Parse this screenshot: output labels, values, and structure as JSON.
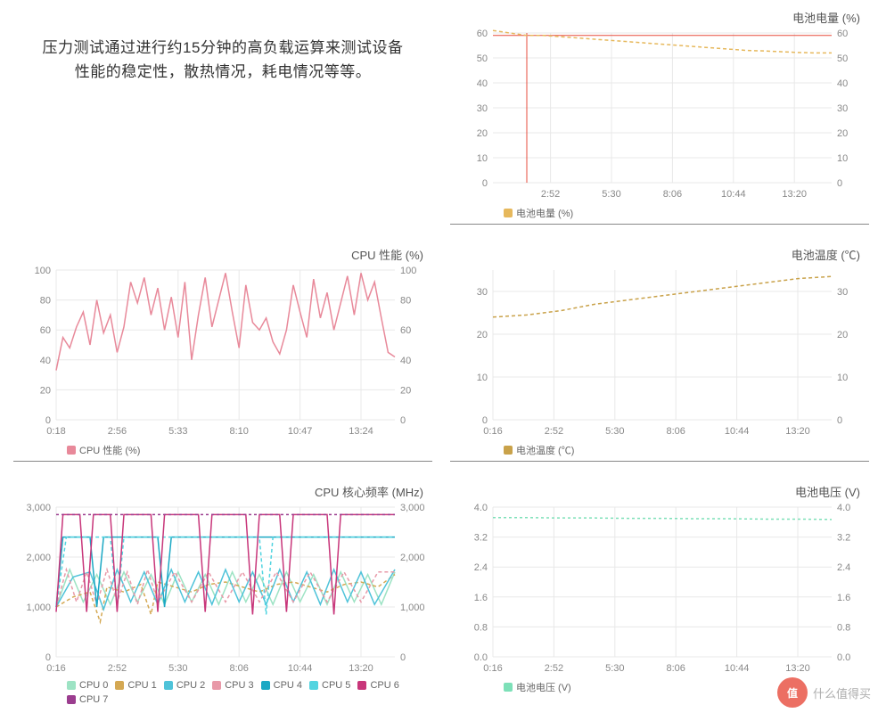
{
  "description": "压力测试通过进行约15分钟的高负载运算来测试设备性能的稳定性，散热情况，耗电情况等等。",
  "watermark": {
    "badge": "值",
    "text": "什么值得买"
  },
  "colors": {
    "grid": "#e8e8e8",
    "axis_text": "#888888",
    "redline": "#e74c3c"
  },
  "charts": {
    "battery_level": {
      "title": "电池电量 (%)",
      "legend_label": "电池电量 (%)",
      "series_color": "#e6b85c",
      "dash": "4,3",
      "ylim": [
        0,
        60
      ],
      "yticks": [
        0,
        10,
        20,
        30,
        40,
        50,
        60
      ],
      "xlabels": [
        "2:52",
        "5:30",
        "8:06",
        "10:44",
        "13:20"
      ],
      "x_positions": [
        0.17,
        0.35,
        0.53,
        0.71,
        0.89
      ],
      "data": [
        [
          0,
          61
        ],
        [
          0.05,
          60
        ],
        [
          0.1,
          59
        ],
        [
          0.15,
          59
        ],
        [
          0.2,
          58.5
        ],
        [
          0.25,
          58
        ],
        [
          0.3,
          57.5
        ],
        [
          0.35,
          57
        ],
        [
          0.4,
          56.5
        ],
        [
          0.45,
          56
        ],
        [
          0.5,
          55.5
        ],
        [
          0.55,
          55
        ],
        [
          0.6,
          54.5
        ],
        [
          0.65,
          54
        ],
        [
          0.7,
          53.5
        ],
        [
          0.75,
          53
        ],
        [
          0.8,
          52.8
        ],
        [
          0.85,
          52.5
        ],
        [
          0.9,
          52.2
        ],
        [
          0.95,
          52
        ],
        [
          1,
          52
        ]
      ],
      "refline_y": 59
    },
    "cpu_perf": {
      "title": "CPU 性能 (%)",
      "legend_label": "CPU 性能 (%)",
      "series_color": "#e8899a",
      "dash": "",
      "ylim": [
        0,
        100
      ],
      "yticks": [
        0,
        20,
        40,
        60,
        80,
        100
      ],
      "xlabels": [
        "0:18",
        "2:56",
        "5:33",
        "8:10",
        "10:47",
        "13:24"
      ],
      "x_positions": [
        0.0,
        0.18,
        0.36,
        0.54,
        0.72,
        0.9
      ],
      "data": [
        [
          0,
          33
        ],
        [
          0.02,
          55
        ],
        [
          0.04,
          48
        ],
        [
          0.06,
          62
        ],
        [
          0.08,
          72
        ],
        [
          0.1,
          50
        ],
        [
          0.12,
          80
        ],
        [
          0.14,
          58
        ],
        [
          0.16,
          70
        ],
        [
          0.18,
          45
        ],
        [
          0.2,
          62
        ],
        [
          0.22,
          92
        ],
        [
          0.24,
          78
        ],
        [
          0.26,
          95
        ],
        [
          0.28,
          70
        ],
        [
          0.3,
          88
        ],
        [
          0.32,
          60
        ],
        [
          0.34,
          82
        ],
        [
          0.36,
          55
        ],
        [
          0.38,
          92
        ],
        [
          0.4,
          40
        ],
        [
          0.42,
          70
        ],
        [
          0.44,
          95
        ],
        [
          0.46,
          62
        ],
        [
          0.48,
          80
        ],
        [
          0.5,
          98
        ],
        [
          0.52,
          72
        ],
        [
          0.54,
          48
        ],
        [
          0.56,
          90
        ],
        [
          0.58,
          65
        ],
        [
          0.6,
          60
        ],
        [
          0.62,
          68
        ],
        [
          0.64,
          52
        ],
        [
          0.66,
          44
        ],
        [
          0.68,
          60
        ],
        [
          0.7,
          90
        ],
        [
          0.72,
          72
        ],
        [
          0.74,
          55
        ],
        [
          0.76,
          94
        ],
        [
          0.78,
          68
        ],
        [
          0.8,
          85
        ],
        [
          0.82,
          60
        ],
        [
          0.84,
          78
        ],
        [
          0.86,
          96
        ],
        [
          0.88,
          70
        ],
        [
          0.9,
          98
        ],
        [
          0.92,
          80
        ],
        [
          0.94,
          92
        ],
        [
          0.96,
          68
        ],
        [
          0.98,
          45
        ],
        [
          1,
          42
        ]
      ]
    },
    "battery_temp": {
      "title": "电池温度 (℃)",
      "legend_label": "电池温度 (℃)",
      "series_color": "#c9a24a",
      "dash": "4,3",
      "ylim": [
        0,
        35
      ],
      "yticks": [
        0,
        10,
        20,
        30
      ],
      "yticks_right": [
        0,
        10,
        20,
        30
      ],
      "xlabels": [
        "0:16",
        "2:52",
        "5:30",
        "8:06",
        "10:44",
        "13:20"
      ],
      "x_positions": [
        0.0,
        0.18,
        0.36,
        0.54,
        0.72,
        0.9
      ],
      "data": [
        [
          0,
          24
        ],
        [
          0.1,
          24.5
        ],
        [
          0.2,
          25.5
        ],
        [
          0.3,
          27
        ],
        [
          0.4,
          28
        ],
        [
          0.5,
          29
        ],
        [
          0.6,
          30
        ],
        [
          0.7,
          31
        ],
        [
          0.8,
          32
        ],
        [
          0.9,
          33
        ],
        [
          1,
          33.5
        ]
      ]
    },
    "cpu_freq": {
      "title": "CPU 核心频率 (MHz)",
      "ylim": [
        0,
        3000
      ],
      "yticks": [
        0,
        1000,
        2000,
        3000
      ],
      "ytick_labels": [
        "0",
        "1,000",
        "2,000",
        "3,000"
      ],
      "xlabels": [
        "0:16",
        "2:52",
        "5:30",
        "8:06",
        "10:44",
        "13:20"
      ],
      "x_positions": [
        0.0,
        0.18,
        0.36,
        0.54,
        0.72,
        0.9
      ],
      "legend_prefix": "CPU",
      "series": [
        {
          "name": "0",
          "color": "#9de3c4",
          "dash": "",
          "data": [
            [
              0,
              1000
            ],
            [
              0.04,
              1750
            ],
            [
              0.08,
              1100
            ],
            [
              0.12,
              1650
            ],
            [
              0.16,
              1050
            ],
            [
              0.2,
              1700
            ],
            [
              0.24,
              1100
            ],
            [
              0.28,
              1650
            ],
            [
              0.32,
              1050
            ],
            [
              0.36,
              1700
            ],
            [
              0.4,
              1100
            ],
            [
              0.44,
              1650
            ],
            [
              0.48,
              1050
            ],
            [
              0.52,
              1700
            ],
            [
              0.56,
              1100
            ],
            [
              0.6,
              1650
            ],
            [
              0.64,
              1050
            ],
            [
              0.68,
              1700
            ],
            [
              0.72,
              1100
            ],
            [
              0.76,
              1650
            ],
            [
              0.8,
              1050
            ],
            [
              0.84,
              1700
            ],
            [
              0.88,
              1100
            ],
            [
              0.92,
              1650
            ],
            [
              0.96,
              1050
            ],
            [
              1,
              1700
            ]
          ]
        },
        {
          "name": "1",
          "color": "#d4a853",
          "dash": "4,3",
          "data": [
            [
              0,
              1000
            ],
            [
              0.05,
              1200
            ],
            [
              0.1,
              1300
            ],
            [
              0.13,
              700
            ],
            [
              0.15,
              1400
            ],
            [
              0.2,
              1300
            ],
            [
              0.25,
              1450
            ],
            [
              0.28,
              850
            ],
            [
              0.3,
              1500
            ],
            [
              0.35,
              1400
            ],
            [
              0.4,
              1300
            ],
            [
              0.45,
              1450
            ],
            [
              0.5,
              1500
            ],
            [
              0.55,
              1400
            ],
            [
              0.6,
              1300
            ],
            [
              0.65,
              1450
            ],
            [
              0.7,
              1500
            ],
            [
              0.75,
              1400
            ],
            [
              0.8,
              1300
            ],
            [
              0.85,
              1450
            ],
            [
              0.9,
              1500
            ],
            [
              0.95,
              1400
            ],
            [
              1,
              1650
            ]
          ]
        },
        {
          "name": "2",
          "color": "#4fc3d9",
          "dash": "",
          "data": [
            [
              0,
              1000
            ],
            [
              0.05,
              1600
            ],
            [
              0.1,
              1700
            ],
            [
              0.14,
              950
            ],
            [
              0.18,
              1750
            ],
            [
              0.22,
              1100
            ],
            [
              0.26,
              1700
            ],
            [
              0.3,
              1050
            ],
            [
              0.34,
              1750
            ],
            [
              0.38,
              1100
            ],
            [
              0.42,
              1700
            ],
            [
              0.46,
              1050
            ],
            [
              0.5,
              1750
            ],
            [
              0.54,
              1100
            ],
            [
              0.58,
              1700
            ],
            [
              0.62,
              1050
            ],
            [
              0.66,
              1750
            ],
            [
              0.7,
              1100
            ],
            [
              0.74,
              1700
            ],
            [
              0.78,
              1050
            ],
            [
              0.82,
              1750
            ],
            [
              0.86,
              1100
            ],
            [
              0.9,
              1700
            ],
            [
              0.94,
              1050
            ],
            [
              1,
              1750
            ]
          ]
        },
        {
          "name": "3",
          "color": "#e899a8",
          "dash": "4,3",
          "data": [
            [
              0,
              1000
            ],
            [
              0.03,
              1750
            ],
            [
              0.06,
              1100
            ],
            [
              0.09,
              1700
            ],
            [
              0.12,
              1050
            ],
            [
              0.15,
              1750
            ],
            [
              0.18,
              1100
            ],
            [
              0.21,
              1700
            ],
            [
              0.24,
              1050
            ],
            [
              0.27,
              1750
            ],
            [
              0.3,
              1100
            ],
            [
              0.35,
              1700
            ],
            [
              0.4,
              1100
            ],
            [
              0.45,
              1700
            ],
            [
              0.5,
              1100
            ],
            [
              0.55,
              1700
            ],
            [
              0.6,
              1100
            ],
            [
              0.65,
              1700
            ],
            [
              0.7,
              1100
            ],
            [
              0.75,
              1700
            ],
            [
              0.8,
              1100
            ],
            [
              0.85,
              1700
            ],
            [
              0.9,
              1100
            ],
            [
              0.95,
              1700
            ],
            [
              1,
              1700
            ]
          ]
        },
        {
          "name": "4",
          "color": "#1ba8c4",
          "dash": "",
          "data": [
            [
              0,
              1000
            ],
            [
              0.02,
              2400
            ],
            [
              0.1,
              2400
            ],
            [
              0.12,
              1000
            ],
            [
              0.14,
              2400
            ],
            [
              0.3,
              2400
            ],
            [
              0.32,
              1000
            ],
            [
              0.34,
              2400
            ],
            [
              1,
              2400
            ]
          ]
        },
        {
          "name": "5",
          "color": "#52d4e0",
          "dash": "4,3",
          "data": [
            [
              0,
              1000
            ],
            [
              0.03,
              2400
            ],
            [
              0.16,
              2400
            ],
            [
              0.18,
              1000
            ],
            [
              0.2,
              2400
            ],
            [
              0.6,
              2400
            ],
            [
              0.62,
              850
            ],
            [
              0.64,
              2400
            ],
            [
              1,
              2400
            ]
          ]
        },
        {
          "name": "6",
          "color": "#c8367a",
          "dash": "",
          "data": [
            [
              0,
              900
            ],
            [
              0.02,
              2850
            ],
            [
              0.07,
              2850
            ],
            [
              0.09,
              900
            ],
            [
              0.11,
              2850
            ],
            [
              0.16,
              2850
            ],
            [
              0.18,
              900
            ],
            [
              0.2,
              2850
            ],
            [
              0.28,
              2850
            ],
            [
              0.3,
              900
            ],
            [
              0.32,
              2850
            ],
            [
              0.42,
              2850
            ],
            [
              0.44,
              900
            ],
            [
              0.46,
              2850
            ],
            [
              0.56,
              2850
            ],
            [
              0.58,
              850
            ],
            [
              0.6,
              2850
            ],
            [
              0.66,
              2850
            ],
            [
              0.68,
              900
            ],
            [
              0.7,
              2850
            ],
            [
              0.8,
              2850
            ],
            [
              0.82,
              850
            ],
            [
              0.84,
              2850
            ],
            [
              1,
              2850
            ]
          ]
        },
        {
          "name": "7",
          "color": "#9b3d8f",
          "dash": "3,3",
          "data": [
            [
              0,
              2850
            ],
            [
              1,
              2850
            ]
          ]
        }
      ]
    },
    "battery_voltage": {
      "title": "电池电压 (V)",
      "legend_label": "电池电压 (V)",
      "series_color": "#7de0b8",
      "dash": "3,3",
      "ylim": [
        0,
        4
      ],
      "yticks": [
        0,
        0.8,
        1.6,
        2.4,
        3.2,
        4.0
      ],
      "ytick_labels": [
        "0.0",
        "0.8",
        "1.6",
        "2.4",
        "3.2",
        "4.0"
      ],
      "xlabels": [
        "0:16",
        "2:52",
        "5:30",
        "8:06",
        "10:44",
        "13:20"
      ],
      "x_positions": [
        0.0,
        0.18,
        0.36,
        0.54,
        0.72,
        0.9
      ],
      "data": [
        [
          0,
          3.72
        ],
        [
          0.1,
          3.72
        ],
        [
          0.2,
          3.71
        ],
        [
          0.3,
          3.71
        ],
        [
          0.4,
          3.7
        ],
        [
          0.5,
          3.7
        ],
        [
          0.6,
          3.69
        ],
        [
          0.7,
          3.69
        ],
        [
          0.8,
          3.68
        ],
        [
          0.9,
          3.68
        ],
        [
          1,
          3.67
        ]
      ]
    }
  }
}
